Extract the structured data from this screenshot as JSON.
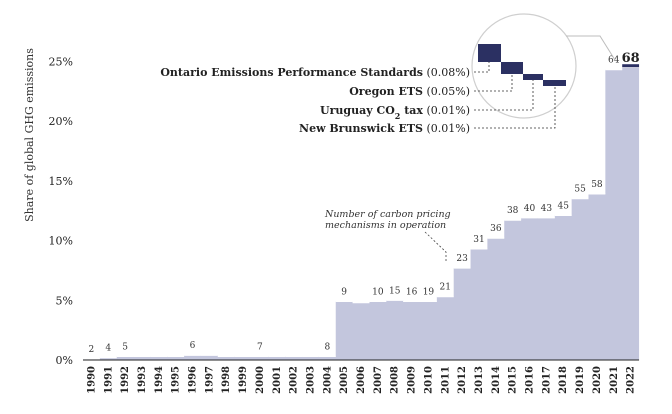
{
  "chart_data": {
    "type": "area",
    "ylabel": "Share of global GHG emissions",
    "ylim": [
      0,
      25
    ],
    "y_ticks": [
      "0%",
      "5%",
      "10%",
      "15%",
      "20%",
      "25%"
    ],
    "years": [
      "1990",
      "1991",
      "1992",
      "1993",
      "1994",
      "1995",
      "1996",
      "1997",
      "1998",
      "1999",
      "2000",
      "2001",
      "2002",
      "2003",
      "2004",
      "2005",
      "2006",
      "2007",
      "2008",
      "2009",
      "2010",
      "2011",
      "2012",
      "2013",
      "2014",
      "2015",
      "2016",
      "2017",
      "2018",
      "2019",
      "2020",
      "2021",
      "2022"
    ],
    "share": [
      0.1,
      0.2,
      0.3,
      0.3,
      0.3,
      0.3,
      0.4,
      0.4,
      0.3,
      0.3,
      0.3,
      0.3,
      0.3,
      0.3,
      0.3,
      4.9,
      4.8,
      4.9,
      5.0,
      4.9,
      4.9,
      5.3,
      7.7,
      9.3,
      10.2,
      11.7,
      11.9,
      11.9,
      12.1,
      13.5,
      13.9,
      24.3,
      24.5
    ],
    "mechanism_counts": [
      {
        "year": "1990",
        "count": "2"
      },
      {
        "year": "1991",
        "count": "4"
      },
      {
        "year": "1992",
        "count": "5"
      },
      {
        "year": "1996",
        "count": "6"
      },
      {
        "year": "2000",
        "count": "7"
      },
      {
        "year": "2004",
        "count": "8"
      },
      {
        "year": "2005",
        "count": "9"
      },
      {
        "year": "2007",
        "count": "10"
      },
      {
        "year": "2008",
        "count": "15"
      },
      {
        "year": "2009",
        "count": "16"
      },
      {
        "year": "2010",
        "count": "19"
      },
      {
        "year": "2011",
        "count": "21"
      },
      {
        "year": "2012",
        "count": "23"
      },
      {
        "year": "2013",
        "count": "31"
      },
      {
        "year": "2014",
        "count": "36"
      },
      {
        "year": "2015",
        "count": "38"
      },
      {
        "year": "2016",
        "count": "40"
      },
      {
        "year": "2017",
        "count": "43"
      },
      {
        "year": "2018",
        "count": "45"
      },
      {
        "year": "2019",
        "count": "55"
      },
      {
        "year": "2020",
        "count": "58"
      },
      {
        "year": "2021",
        "count": "64"
      },
      {
        "year": "2022",
        "count": "68"
      }
    ],
    "annotation": [
      "Number of carbon pricing",
      "mechanisms in operation"
    ],
    "callouts": [
      {
        "name": "Ontario Emissions Performance Standards",
        "value": "(0.08%)"
      },
      {
        "name": "Oregon ETS",
        "value": "(0.05%)"
      },
      {
        "name": "Uruguay CO",
        "subscript": "2",
        "suffix": " tax",
        "value": "(0.01%)"
      },
      {
        "name": "New Brunswick ETS",
        "value": "(0.01%)"
      }
    ],
    "colors": {
      "area": "#c3c6dd",
      "area_edge": "#ffffff",
      "highlight": "#2b3062",
      "axis": "#222222"
    }
  }
}
